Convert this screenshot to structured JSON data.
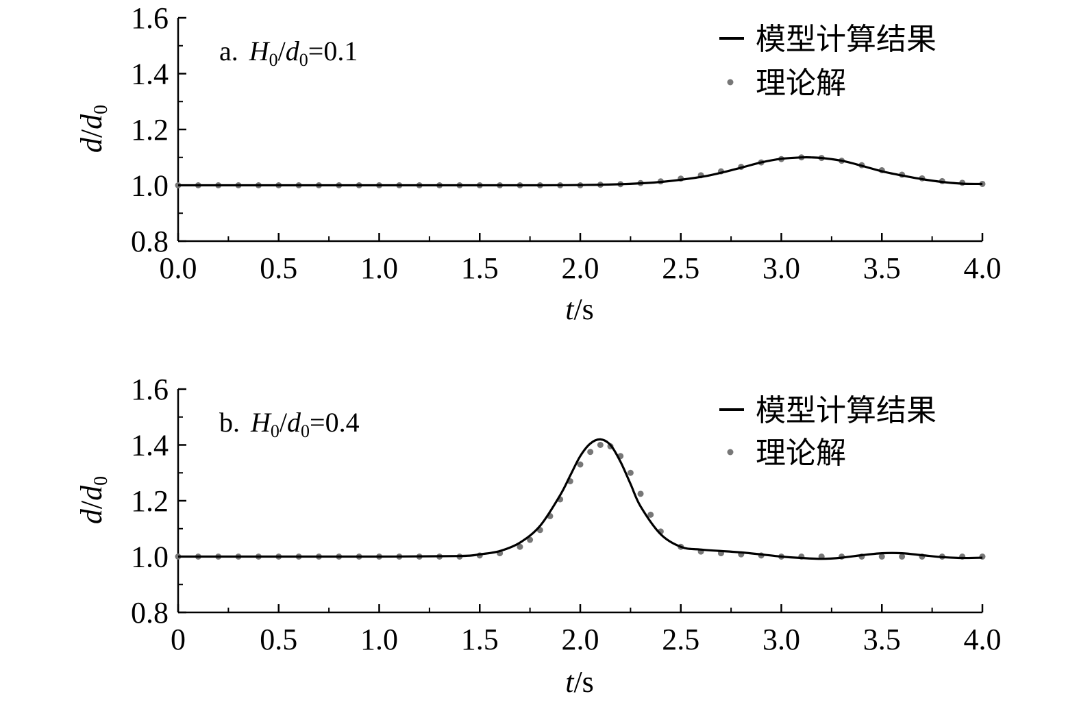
{
  "chart_data": [
    {
      "type": "line",
      "panel_label": {
        "prefix": "a.",
        "H": "H",
        "H_sub": "0",
        "slash": "/",
        "d": "d",
        "d_sub": "0",
        "eq": "=0.1"
      },
      "xlabel": {
        "var": "t",
        "unit": "/s"
      },
      "ylabel": {
        "num": "d",
        "slash": "/",
        "den": "d",
        "den_sub": "0"
      },
      "xlim": [
        0,
        4.0
      ],
      "ylim": [
        0.8,
        1.6
      ],
      "x_ticks": [
        "0.0",
        "0.5",
        "1.0",
        "1.5",
        "2.0",
        "2.5",
        "3.0",
        "3.5",
        "4.0"
      ],
      "y_ticks": [
        "0.8",
        "1.0",
        "1.2",
        "1.4",
        "1.6"
      ],
      "legend": {
        "position": "top-right",
        "entries": [
          "模型计算结果",
          "理论解"
        ]
      },
      "series": [
        {
          "name": "模型计算结果",
          "style": "line",
          "color": "#000000",
          "x": [
            0,
            0.5,
            1.0,
            1.5,
            1.8,
            2.0,
            2.2,
            2.4,
            2.6,
            2.7,
            2.8,
            2.9,
            3.0,
            3.1,
            3.15,
            3.2,
            3.3,
            3.4,
            3.5,
            3.6,
            3.7,
            3.8,
            3.9,
            4.0
          ],
          "y": [
            1.0,
            1.0,
            1.0,
            1.0,
            1.0,
            1.001,
            1.004,
            1.012,
            1.03,
            1.045,
            1.063,
            1.082,
            1.095,
            1.1,
            1.1,
            1.098,
            1.088,
            1.07,
            1.05,
            1.035,
            1.022,
            1.012,
            1.006,
            1.005
          ]
        },
        {
          "name": "理论解",
          "style": "dots",
          "color": "#777777",
          "x": [
            0.0,
            0.1,
            0.2,
            0.3,
            0.4,
            0.5,
            0.6,
            0.7,
            0.8,
            0.9,
            1.0,
            1.1,
            1.2,
            1.3,
            1.4,
            1.5,
            1.6,
            1.7,
            1.8,
            1.9,
            2.0,
            2.1,
            2.2,
            2.3,
            2.4,
            2.5,
            2.6,
            2.7,
            2.8,
            2.9,
            3.0,
            3.1,
            3.2,
            3.3,
            3.4,
            3.5,
            3.6,
            3.7,
            3.8,
            3.9,
            4.0
          ],
          "y": [
            1.0,
            1.0,
            1.0,
            1.0,
            1.0,
            1.0,
            1.0,
            1.0,
            1.0,
            1.0,
            1.0,
            1.0,
            1.0,
            1.0,
            1.0,
            1.0,
            1.0,
            1.0,
            1.0,
            1.0,
            1.0,
            1.002,
            1.004,
            1.008,
            1.014,
            1.024,
            1.036,
            1.05,
            1.066,
            1.082,
            1.094,
            1.1,
            1.098,
            1.088,
            1.072,
            1.054,
            1.038,
            1.025,
            1.015,
            1.009,
            1.005
          ]
        }
      ]
    },
    {
      "type": "line",
      "panel_label": {
        "prefix": "b.",
        "H": "H",
        "H_sub": "0",
        "slash": "/",
        "d": "d",
        "d_sub": "0",
        "eq": "=0.4"
      },
      "xlabel": {
        "var": "t",
        "unit": "/s"
      },
      "ylabel": {
        "num": "d",
        "slash": "/",
        "den": "d",
        "den_sub": "0"
      },
      "xlim": [
        0,
        4.0
      ],
      "ylim": [
        0.8,
        1.6
      ],
      "x_ticks": [
        "0",
        "0.5",
        "1.0",
        "1.5",
        "2.0",
        "2.5",
        "3.0",
        "3.5",
        "4.0"
      ],
      "y_ticks": [
        "0.8",
        "1.0",
        "1.2",
        "1.4",
        "1.6"
      ],
      "legend": {
        "position": "top-right",
        "entries": [
          "模型计算结果",
          "理论解"
        ]
      },
      "series": [
        {
          "name": "模型计算结果",
          "style": "line",
          "color": "#000000",
          "x": [
            0,
            0.5,
            1.0,
            1.4,
            1.5,
            1.6,
            1.7,
            1.8,
            1.9,
            1.95,
            2.0,
            2.05,
            2.1,
            2.15,
            2.2,
            2.25,
            2.3,
            2.4,
            2.5,
            2.6,
            2.8,
            3.0,
            3.1,
            3.2,
            3.3,
            3.4,
            3.5,
            3.6,
            3.7,
            3.8,
            3.9,
            4.0
          ],
          "y": [
            1.0,
            1.0,
            1.0,
            1.002,
            1.008,
            1.02,
            1.05,
            1.11,
            1.22,
            1.29,
            1.36,
            1.405,
            1.42,
            1.4,
            1.34,
            1.26,
            1.18,
            1.08,
            1.035,
            1.025,
            1.015,
            1.0,
            0.995,
            0.992,
            0.996,
            1.005,
            1.012,
            1.012,
            1.005,
            0.998,
            0.995,
            0.996
          ]
        },
        {
          "name": "理论解",
          "style": "dots",
          "color": "#777777",
          "x": [
            0.0,
            0.1,
            0.2,
            0.3,
            0.4,
            0.5,
            0.6,
            0.7,
            0.8,
            0.9,
            1.0,
            1.1,
            1.2,
            1.3,
            1.4,
            1.5,
            1.6,
            1.7,
            1.75,
            1.8,
            1.85,
            1.9,
            1.95,
            2.0,
            2.05,
            2.1,
            2.15,
            2.2,
            2.25,
            2.3,
            2.35,
            2.4,
            2.5,
            2.6,
            2.7,
            2.8,
            2.9,
            3.0,
            3.1,
            3.2,
            3.3,
            3.4,
            3.5,
            3.6,
            3.7,
            3.8,
            3.9,
            4.0
          ],
          "y": [
            1.0,
            1.0,
            1.0,
            1.0,
            1.0,
            1.0,
            1.0,
            1.0,
            1.0,
            1.0,
            1.0,
            1.0,
            1.0,
            1.0,
            1.0,
            1.004,
            1.012,
            1.035,
            1.06,
            1.095,
            1.145,
            1.205,
            1.27,
            1.33,
            1.375,
            1.4,
            1.395,
            1.36,
            1.3,
            1.225,
            1.15,
            1.09,
            1.035,
            1.018,
            1.012,
            1.008,
            1.004,
            1.0,
            1.0,
            1.0,
            1.0,
            1.0,
            1.0,
            1.0,
            1.0,
            1.0,
            1.0,
            1.0
          ]
        }
      ]
    }
  ]
}
